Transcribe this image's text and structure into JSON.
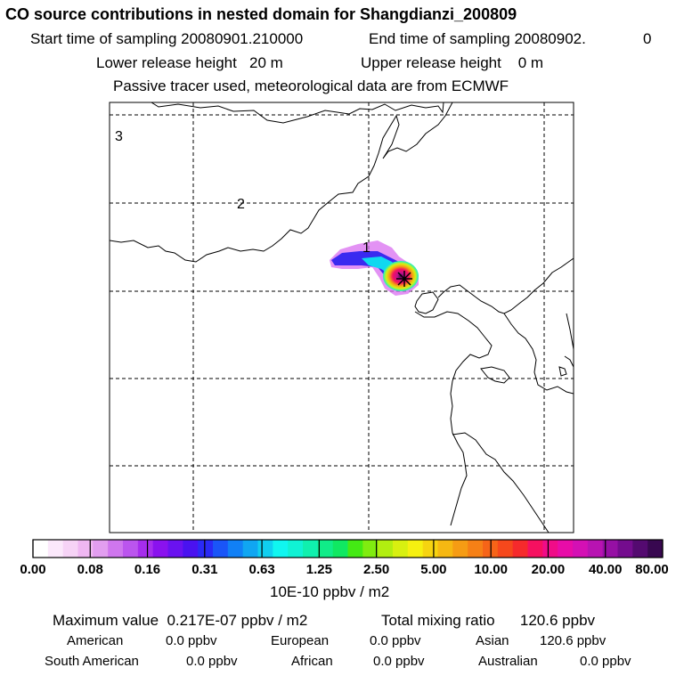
{
  "header": {
    "title": "CO  source contributions in nested domain for Shangdianzi_200809",
    "start_label": "Start time of sampling 20080901.210000",
    "end_label": "End time of sampling 20080902.",
    "end_suffix": "0",
    "lower_height": "Lower release height   20 m",
    "upper_height": "Upper release height    0 m",
    "note": "Passive tracer used, meteorological data are from ECMWF"
  },
  "map": {
    "ring_labels": [
      "3",
      "2",
      "1"
    ],
    "station_marker": "site-star-icon"
  },
  "colorbar": {
    "colors": [
      "#ffffff",
      "#fbe8fb",
      "#f6d3f6",
      "#efb7f2",
      "#e29ef0",
      "#cf76ee",
      "#bb55ee",
      "#a62ded",
      "#8a12ee",
      "#6a12f0",
      "#4a12f0",
      "#2a2af6",
      "#1a55f8",
      "#1180f6",
      "#10a6f2",
      "#10cff0",
      "#10f6f0",
      "#10f2d4",
      "#10f0ae",
      "#10ec88",
      "#10e862",
      "#44ea14",
      "#80ec10",
      "#b2ee10",
      "#d8f010",
      "#f6f010",
      "#f6d410",
      "#f6b812",
      "#f69c14",
      "#f68016",
      "#f66418",
      "#f6481c",
      "#f62a2c",
      "#f61060",
      "#f00c88",
      "#e80ca8",
      "#d410b4",
      "#b813b2",
      "#9610a4",
      "#740c8e",
      "#540a70",
      "#380850"
    ],
    "ticks": [
      "0.00",
      "0.08",
      "0.16",
      "0.31",
      "0.63",
      "1.25",
      "2.50",
      "5.00",
      "10.00",
      "20.00",
      "40.00",
      "80.00"
    ],
    "unit": "10E-10 ppbv / m2"
  },
  "stats": {
    "max_value": "Maximum value  0.217E-07 ppbv / m2",
    "total_ratio": "Total mixing ratio      120.6 ppbv",
    "row1": [
      {
        "label": "American",
        "value": "0.0 ppbv"
      },
      {
        "label": "European",
        "value": "0.0 ppbv"
      },
      {
        "label": "Asian",
        "value": "120.6 ppbv"
      }
    ],
    "row2": [
      {
        "label": "South American",
        "value": "0.0 ppbv"
      },
      {
        "label": "African",
        "value": "0.0 ppbv"
      },
      {
        "label": "Australian",
        "value": "0.0 ppbv"
      }
    ]
  }
}
